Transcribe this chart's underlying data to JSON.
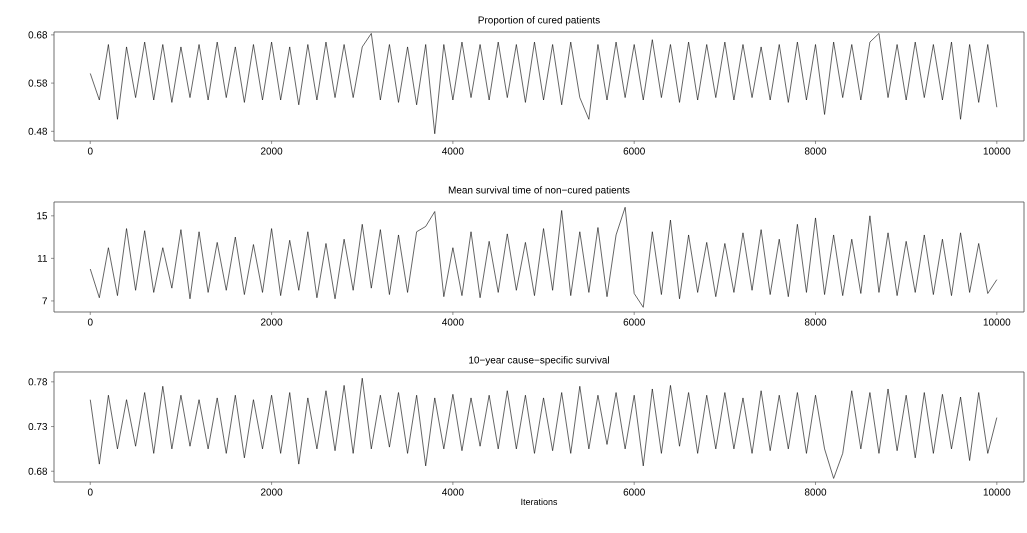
{
  "chart_data": [
    {
      "type": "line",
      "title": "Proportion of cured patients",
      "color": "#000000",
      "x": [
        0,
        100,
        200,
        300,
        400,
        500,
        600,
        700,
        800,
        900,
        1000,
        1100,
        1200,
        1300,
        1400,
        1500,
        1600,
        1700,
        1800,
        1900,
        2000,
        2100,
        2200,
        2300,
        2400,
        2500,
        2600,
        2700,
        2800,
        2900,
        3000,
        3100,
        3200,
        3300,
        3400,
        3500,
        3600,
        3700,
        3800,
        3900,
        4000,
        4100,
        4200,
        4300,
        4400,
        4500,
        4600,
        4700,
        4800,
        4900,
        5000,
        5100,
        5200,
        5300,
        5400,
        5500,
        5600,
        5700,
        5800,
        5900,
        6000,
        6100,
        6200,
        6300,
        6400,
        6500,
        6600,
        6700,
        6800,
        6900,
        7000,
        7100,
        7200,
        7300,
        7400,
        7500,
        7600,
        7700,
        7800,
        7900,
        8000,
        8100,
        8200,
        8300,
        8400,
        8500,
        8600,
        8700,
        8800,
        8900,
        9000,
        9100,
        9200,
        9300,
        9400,
        9500,
        9600,
        9700,
        9800,
        9900,
        10000
      ],
      "values": [
        0.6,
        0.545,
        0.66,
        0.505,
        0.655,
        0.55,
        0.665,
        0.545,
        0.66,
        0.54,
        0.655,
        0.55,
        0.66,
        0.545,
        0.665,
        0.55,
        0.655,
        0.54,
        0.66,
        0.545,
        0.665,
        0.545,
        0.655,
        0.535,
        0.66,
        0.545,
        0.665,
        0.55,
        0.66,
        0.55,
        0.655,
        0.683,
        0.545,
        0.66,
        0.54,
        0.655,
        0.535,
        0.66,
        0.475,
        0.66,
        0.545,
        0.665,
        0.55,
        0.66,
        0.545,
        0.665,
        0.55,
        0.66,
        0.54,
        0.665,
        0.545,
        0.66,
        0.535,
        0.665,
        0.55,
        0.505,
        0.66,
        0.545,
        0.665,
        0.55,
        0.66,
        0.545,
        0.67,
        0.55,
        0.66,
        0.54,
        0.665,
        0.545,
        0.66,
        0.55,
        0.665,
        0.545,
        0.66,
        0.55,
        0.655,
        0.545,
        0.66,
        0.54,
        0.665,
        0.545,
        0.66,
        0.515,
        0.665,
        0.55,
        0.66,
        0.545,
        0.665,
        0.683,
        0.55,
        0.66,
        0.545,
        0.665,
        0.55,
        0.66,
        0.545,
        0.665,
        0.505,
        0.66,
        0.54,
        0.66,
        0.53
      ],
      "xlim": [
        -400,
        10300
      ],
      "ylim": [
        0.46,
        0.686
      ],
      "xticks": [
        0,
        2000,
        4000,
        6000,
        8000,
        10000
      ],
      "yticks": [
        0.48,
        0.58,
        0.68
      ]
    },
    {
      "type": "line",
      "title": "Mean survival time of non−cured patients",
      "color": "#000000",
      "x": [
        0,
        100,
        200,
        300,
        400,
        500,
        600,
        700,
        800,
        900,
        1000,
        1100,
        1200,
        1300,
        1400,
        1500,
        1600,
        1700,
        1800,
        1900,
        2000,
        2100,
        2200,
        2300,
        2400,
        2500,
        2600,
        2700,
        2800,
        2900,
        3000,
        3100,
        3200,
        3300,
        3400,
        3500,
        3600,
        3700,
        3800,
        3900,
        4000,
        4100,
        4200,
        4300,
        4400,
        4500,
        4600,
        4700,
        4800,
        4900,
        5000,
        5100,
        5200,
        5300,
        5400,
        5500,
        5600,
        5700,
        5800,
        5900,
        6000,
        6100,
        6200,
        6300,
        6400,
        6500,
        6600,
        6700,
        6800,
        6900,
        7000,
        7100,
        7200,
        7300,
        7400,
        7500,
        7600,
        7700,
        7800,
        7900,
        8000,
        8100,
        8200,
        8300,
        8400,
        8500,
        8600,
        8700,
        8800,
        8900,
        9000,
        9100,
        9200,
        9300,
        9400,
        9500,
        9600,
        9700,
        9800,
        9900,
        10000
      ],
      "values": [
        10,
        7.3,
        12,
        7.5,
        13.8,
        8,
        13.6,
        7.8,
        12,
        8.2,
        13.7,
        7.2,
        13.5,
        7.8,
        12.5,
        8,
        13,
        7.6,
        12.3,
        7.8,
        13.8,
        7.5,
        12.7,
        8,
        13.5,
        7.3,
        12.4,
        7.2,
        12.8,
        8,
        14.2,
        8.2,
        13.7,
        7.6,
        13.2,
        7.8,
        13.5,
        14,
        15.4,
        7.4,
        12,
        7.5,
        13.5,
        7.3,
        12.6,
        7.8,
        13.3,
        8,
        12.5,
        7.5,
        13.8,
        8,
        15.5,
        7.5,
        13.5,
        7.8,
        13.9,
        7.4,
        13.2,
        15.8,
        7.7,
        6.4,
        13.5,
        7.6,
        14.6,
        7.2,
        13.2,
        7.8,
        12.5,
        7.4,
        12.4,
        7.8,
        13.4,
        8,
        13.7,
        7.6,
        12.8,
        7.4,
        14.2,
        7.8,
        14.8,
        7.6,
        13.2,
        7.5,
        12.8,
        7.7,
        15,
        7.8,
        13.4,
        7.5,
        12.6,
        7.8,
        13.2,
        7.6,
        12.8,
        7.5,
        13.4,
        7.8,
        12.4,
        7.7,
        9
      ],
      "xlim": [
        -400,
        10300
      ],
      "ylim": [
        5.96,
        16.3
      ],
      "xticks": [
        0,
        2000,
        4000,
        6000,
        8000,
        10000
      ],
      "yticks": [
        7,
        11,
        15
      ]
    },
    {
      "type": "line",
      "title": "10−year cause−specific survival",
      "xlabel": "Iterations",
      "color": "#000000",
      "x": [
        0,
        100,
        200,
        300,
        400,
        500,
        600,
        700,
        800,
        900,
        1000,
        1100,
        1200,
        1300,
        1400,
        1500,
        1600,
        1700,
        1800,
        1900,
        2000,
        2100,
        2200,
        2300,
        2400,
        2500,
        2600,
        2700,
        2800,
        2900,
        3000,
        3100,
        3200,
        3300,
        3400,
        3500,
        3600,
        3700,
        3800,
        3900,
        4000,
        4100,
        4200,
        4300,
        4400,
        4500,
        4600,
        4700,
        4800,
        4900,
        5000,
        5100,
        5200,
        5300,
        5400,
        5500,
        5600,
        5700,
        5800,
        5900,
        6000,
        6100,
        6200,
        6300,
        6400,
        6500,
        6600,
        6700,
        6800,
        6900,
        7000,
        7100,
        7200,
        7300,
        7400,
        7500,
        7600,
        7700,
        7800,
        7900,
        8000,
        8100,
        8200,
        8300,
        8400,
        8500,
        8600,
        8700,
        8800,
        8900,
        9000,
        9100,
        9200,
        9300,
        9400,
        9500,
        9600,
        9700,
        9800,
        9900,
        10000
      ],
      "values": [
        0.76,
        0.688,
        0.765,
        0.705,
        0.76,
        0.708,
        0.768,
        0.7,
        0.775,
        0.705,
        0.765,
        0.708,
        0.76,
        0.705,
        0.762,
        0.7,
        0.765,
        0.695,
        0.76,
        0.705,
        0.765,
        0.7,
        0.768,
        0.688,
        0.762,
        0.705,
        0.77,
        0.703,
        0.776,
        0.7,
        0.784,
        0.705,
        0.765,
        0.707,
        0.768,
        0.7,
        0.765,
        0.686,
        0.762,
        0.705,
        0.766,
        0.703,
        0.762,
        0.708,
        0.765,
        0.705,
        0.77,
        0.705,
        0.765,
        0.7,
        0.762,
        0.703,
        0.768,
        0.7,
        0.775,
        0.705,
        0.765,
        0.71,
        0.768,
        0.705,
        0.765,
        0.686,
        0.772,
        0.7,
        0.776,
        0.708,
        0.768,
        0.7,
        0.765,
        0.705,
        0.768,
        0.705,
        0.762,
        0.7,
        0.77,
        0.703,
        0.765,
        0.705,
        0.768,
        0.7,
        0.765,
        0.705,
        0.672,
        0.7,
        0.77,
        0.705,
        0.768,
        0.7,
        0.772,
        0.703,
        0.765,
        0.695,
        0.768,
        0.7,
        0.766,
        0.705,
        0.763,
        0.692,
        0.768,
        0.7,
        0.74
      ],
      "xlim": [
        -400,
        10300
      ],
      "ylim": [
        0.668,
        0.791
      ],
      "xticks": [
        0,
        2000,
        4000,
        6000,
        8000,
        10000
      ],
      "yticks": [
        0.68,
        0.73,
        0.78
      ]
    }
  ]
}
